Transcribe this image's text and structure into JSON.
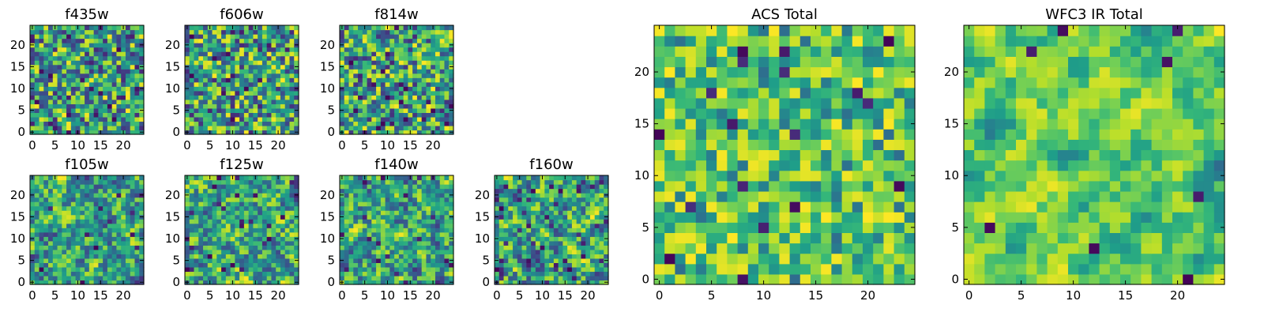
{
  "chart_data": [
    {
      "type": "heatmap",
      "title": "f435w",
      "xlim": [
        0,
        25
      ],
      "ylim": [
        0,
        25
      ],
      "xticks": [
        0,
        5,
        10,
        15,
        20
      ],
      "yticks": [
        0,
        5,
        10,
        15,
        20
      ],
      "grid_size": 25,
      "colormap": "viridis",
      "seed": 11,
      "style": "noise",
      "dark_spots": 0.06
    },
    {
      "type": "heatmap",
      "title": "f606w",
      "xlim": [
        0,
        25
      ],
      "ylim": [
        0,
        25
      ],
      "xticks": [
        0,
        5,
        10,
        15,
        20
      ],
      "yticks": [
        0,
        5,
        10,
        15,
        20
      ],
      "grid_size": 25,
      "colormap": "viridis",
      "seed": 23,
      "style": "noise",
      "dark_spots": 0.05
    },
    {
      "type": "heatmap",
      "title": "f814w",
      "xlim": [
        0,
        25
      ],
      "ylim": [
        0,
        25
      ],
      "xticks": [
        0,
        5,
        10,
        15,
        20
      ],
      "yticks": [
        0,
        5,
        10,
        15,
        20
      ],
      "grid_size": 25,
      "colormap": "viridis",
      "seed": 37,
      "style": "noise",
      "dark_spots": 0.05
    },
    {
      "type": "heatmap",
      "title": "f105w",
      "xlim": [
        0,
        25
      ],
      "ylim": [
        0,
        25
      ],
      "xticks": [
        0,
        5,
        10,
        15,
        20
      ],
      "yticks": [
        0,
        5,
        10,
        15,
        20
      ],
      "grid_size": 25,
      "colormap": "viridis",
      "seed": 41,
      "style": "smooth",
      "dark_spots": 0.03
    },
    {
      "type": "heatmap",
      "title": "f125w",
      "xlim": [
        0,
        25
      ],
      "ylim": [
        0,
        25
      ],
      "xticks": [
        0,
        5,
        10,
        15,
        20
      ],
      "yticks": [
        0,
        5,
        10,
        15,
        20
      ],
      "grid_size": 25,
      "colormap": "viridis",
      "seed": 53,
      "style": "smooth",
      "dark_spots": 0.04
    },
    {
      "type": "heatmap",
      "title": "f140w",
      "xlim": [
        0,
        25
      ],
      "ylim": [
        0,
        25
      ],
      "xticks": [
        0,
        5,
        10,
        15,
        20
      ],
      "yticks": [
        0,
        5,
        10,
        15,
        20
      ],
      "grid_size": 25,
      "colormap": "viridis",
      "seed": 67,
      "style": "smooth",
      "dark_spots": 0.04
    },
    {
      "type": "heatmap",
      "title": "f160w",
      "xlim": [
        0,
        25
      ],
      "ylim": [
        0,
        25
      ],
      "xticks": [
        0,
        5,
        10,
        15,
        20
      ],
      "yticks": [
        0,
        5,
        10,
        15,
        20
      ],
      "grid_size": 25,
      "colormap": "viridis",
      "seed": 79,
      "style": "smooth",
      "dark_spots": 0.06
    },
    {
      "type": "heatmap",
      "title": "ACS Total",
      "xlim": [
        0,
        25
      ],
      "ylim": [
        0,
        25
      ],
      "xticks": [
        0,
        5,
        10,
        15,
        20
      ],
      "yticks": [
        0,
        5,
        10,
        15,
        20
      ],
      "grid_size": 25,
      "colormap": "viridis",
      "seed": 97,
      "style": "total",
      "dark_spots": 0.025
    },
    {
      "type": "heatmap",
      "title": "WFC3 IR Total",
      "xlim": [
        0,
        25
      ],
      "ylim": [
        0,
        25
      ],
      "xticks": [
        0,
        5,
        10,
        15,
        20
      ],
      "yticks": [
        0,
        5,
        10,
        15,
        20
      ],
      "grid_size": 25,
      "colormap": "viridis",
      "seed": 113,
      "style": "smooth-total",
      "dark_spots": 0.02
    }
  ]
}
